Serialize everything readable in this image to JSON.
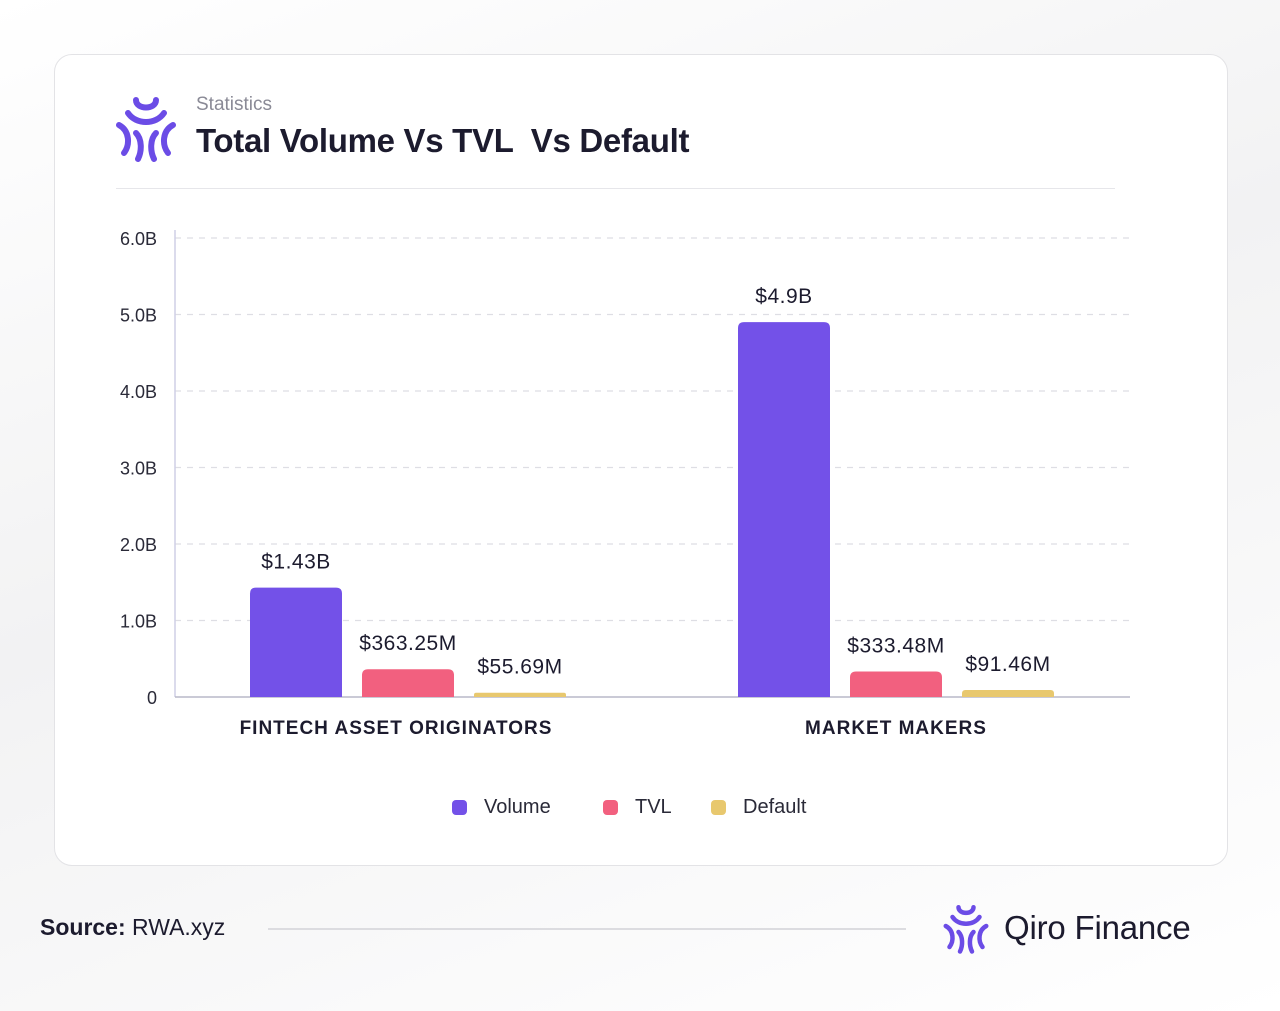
{
  "header": {
    "subtitle": "Statistics",
    "title": "Total Volume Vs TVL  Vs Default"
  },
  "footer": {
    "source_label": "Source:",
    "source_value": "RWA.xyz",
    "brand_name": "Qiro Finance"
  },
  "colors": {
    "volume": "#7351E8",
    "tvl": "#F2607F",
    "default": "#E8C86E",
    "brand": "#6B4CE6"
  },
  "icons": {
    "header_logo": "qiro-logo-icon",
    "footer_logo": "qiro-logo-icon"
  },
  "chart_data": {
    "type": "bar",
    "title": "Total Volume Vs TVL  Vs Default",
    "categories": [
      "FINTECH ASSET ORIGINATORS",
      "MARKET MAKERS"
    ],
    "series": [
      {
        "name": "Volume",
        "values": [
          1.43,
          4.9
        ],
        "labels": [
          "$1.43B",
          "$4.9B"
        ]
      },
      {
        "name": "TVL",
        "values": [
          0.36325,
          0.33348
        ],
        "labels": [
          "$363.25M",
          "$333.48M"
        ]
      },
      {
        "name": "Default",
        "values": [
          0.05569,
          0.09146
        ],
        "labels": [
          "$55.69M",
          "$91.46M"
        ]
      }
    ],
    "ylim": [
      0,
      6
    ],
    "yticks": [
      0,
      1,
      2,
      3,
      4,
      5,
      6
    ],
    "ytick_labels": [
      "0",
      "1.0B",
      "2.0B",
      "3.0B",
      "4.0B",
      "5.0B",
      "6.0B"
    ],
    "xlabel": "",
    "ylabel": "",
    "grid": true,
    "legend_position": "bottom"
  }
}
